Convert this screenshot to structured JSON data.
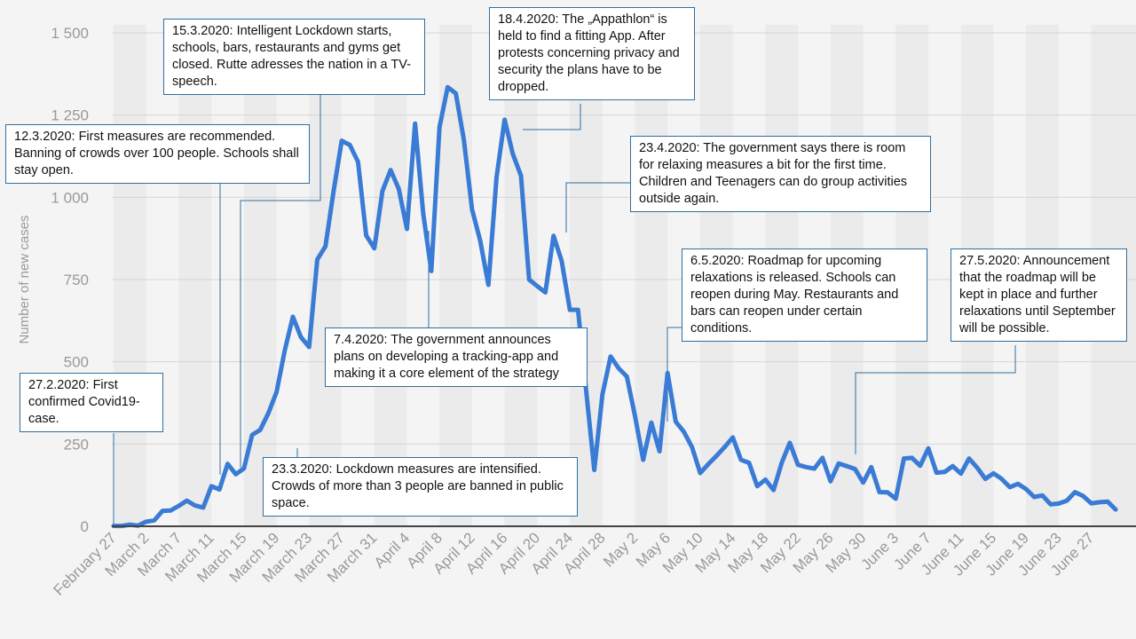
{
  "chart_data": {
    "type": "line",
    "title": "",
    "xlabel": "",
    "ylabel": "Number of new cases",
    "ylim": [
      0,
      1500
    ],
    "yticks": [
      0,
      250,
      500,
      750,
      1000,
      1250,
      1500
    ],
    "ytick_labels": [
      "0",
      "250",
      "500",
      "750",
      "1 000",
      "1 250",
      "1 500"
    ],
    "x_tick_labels": [
      "February 27",
      "March 2",
      "March 7",
      "March 11",
      "March 15",
      "March 19",
      "March 23",
      "March 27",
      "March 31",
      "April 4",
      "April 8",
      "April 12",
      "April 16",
      "April 20",
      "April 24",
      "April 28",
      "May 2",
      "May 6",
      "May 10",
      "May 14",
      "May 18",
      "May 22",
      "May 26",
      "May 30",
      "June 3",
      "June 7",
      "June 11",
      "June 15",
      "June 19",
      "June 23",
      "June 27"
    ],
    "x_tick_day_index": [
      0,
      4,
      8,
      12,
      16,
      20,
      24,
      28,
      32,
      36,
      40,
      44,
      48,
      52,
      56,
      60,
      64,
      68,
      72,
      76,
      80,
      84,
      88,
      92,
      96,
      100,
      104,
      108,
      112,
      116,
      120
    ],
    "line_color": "#3a7bd5",
    "series": [
      {
        "name": "New cases",
        "values": [
          1,
          1,
          5,
          2,
          14,
          18,
          47,
          48,
          62,
          78,
          63,
          57,
          122,
          112,
          190,
          158,
          176,
          278,
          293,
          344,
          408,
          534,
          637,
          575,
          545,
          811,
          851,
          1019,
          1172,
          1159,
          1108,
          884,
          845,
          1019,
          1083,
          1026,
          904,
          1224,
          952,
          776,
          1213,
          1335,
          1316,
          1174,
          963,
          868,
          734,
          1061,
          1236,
          1132,
          1066,
          750,
          730,
          711,
          883,
          806,
          658,
          658,
          414,
          171,
          401,
          516,
          480,
          455,
          335,
          202,
          315,
          228,
          466,
          318,
          287,
          240,
          162,
          189,
          214,
          241,
          270,
          202,
          193,
          122,
          142,
          110,
          193,
          254,
          187,
          180,
          175,
          208,
          137,
          191,
          183,
          174,
          133,
          180,
          104,
          103,
          84,
          206,
          208,
          184,
          237,
          163,
          165,
          183,
          160,
          206,
          178,
          144,
          161,
          144,
          119,
          129,
          113,
          89,
          94,
          67,
          69,
          78,
          104,
          92,
          70,
          73,
          75,
          51
        ]
      }
    ],
    "annotations": [
      {
        "id": "feb27",
        "text": "27.2.2020: First confirmed Covid19-case."
      },
      {
        "id": "mar12",
        "text": "12.3.2020: First measures are recommended. Banning of crowds over 100 people. Schools shall stay open."
      },
      {
        "id": "mar15",
        "text": "15.3.2020: Intelligent Lockdown starts, schools, bars, restaurants and gyms get closed. Rutte adresses the nation in a TV-speech."
      },
      {
        "id": "mar23",
        "text": "23.3.2020: Lockdown measures are intensified. Crowds of more than 3 people are banned in public space."
      },
      {
        "id": "apr7",
        "text": "7.4.2020: The government announces plans on developing a tracking-app and making it a core element of the strategy"
      },
      {
        "id": "apr18",
        "text": "18.4.2020: The „Appathlon“ is held to find a fitting App. After protests concerning privacy and security the plans have to be dropped."
      },
      {
        "id": "apr23",
        "text": "23.4.2020: The government says there is room for relaxing measures a bit for the first time. Children and Teenagers can do group activities outside again."
      },
      {
        "id": "may6",
        "text": "6.5.2020: Roadmap for upcoming relaxations is released. Schools can reopen during May. Restaurants and bars can reopen under certain conditions."
      },
      {
        "id": "may27",
        "text": "27.5.2020: Announcement that the roadmap will be kept in place and further relaxations until September will be possible."
      }
    ]
  }
}
